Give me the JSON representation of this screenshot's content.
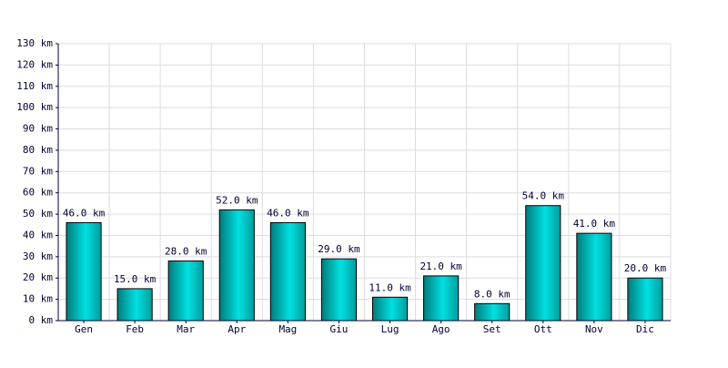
{
  "chart_data": {
    "type": "bar",
    "categories": [
      "Gen",
      "Feb",
      "Mar",
      "Apr",
      "Mag",
      "Giu",
      "Lug",
      "Ago",
      "Set",
      "Ott",
      "Nov",
      "Dic"
    ],
    "values": [
      46,
      15,
      28,
      52,
      46,
      29,
      11,
      21,
      8,
      54,
      41,
      20
    ],
    "value_labels": [
      "46.0 km",
      "15.0 km",
      "28.0 km",
      "52.0 km",
      "46.0 km",
      "29.0 km",
      "11.0 km",
      "21.0 km",
      "8.0 km",
      "54.0 km",
      "41.0 km",
      "20.0 km"
    ],
    "color": "#00e0e0",
    "ylim": [
      0,
      130
    ],
    "yticks": [
      {
        "value": 0,
        "label": "0 km"
      },
      {
        "value": 10,
        "label": "10 km"
      },
      {
        "value": 20,
        "label": "20 km"
      },
      {
        "value": 30,
        "label": "30 km"
      },
      {
        "value": 40,
        "label": "40 km"
      },
      {
        "value": 50,
        "label": "50 km"
      },
      {
        "value": 60,
        "label": "60 km"
      },
      {
        "value": 70,
        "label": "70 km"
      },
      {
        "value": 80,
        "label": "80 km"
      },
      {
        "value": 90,
        "label": "90 km"
      },
      {
        "value": 100,
        "label": "100 km"
      },
      {
        "value": 110,
        "label": "110 km"
      },
      {
        "value": 120,
        "label": "120 km"
      },
      {
        "value": 130,
        "label": "130 km"
      }
    ],
    "grid": true
  }
}
